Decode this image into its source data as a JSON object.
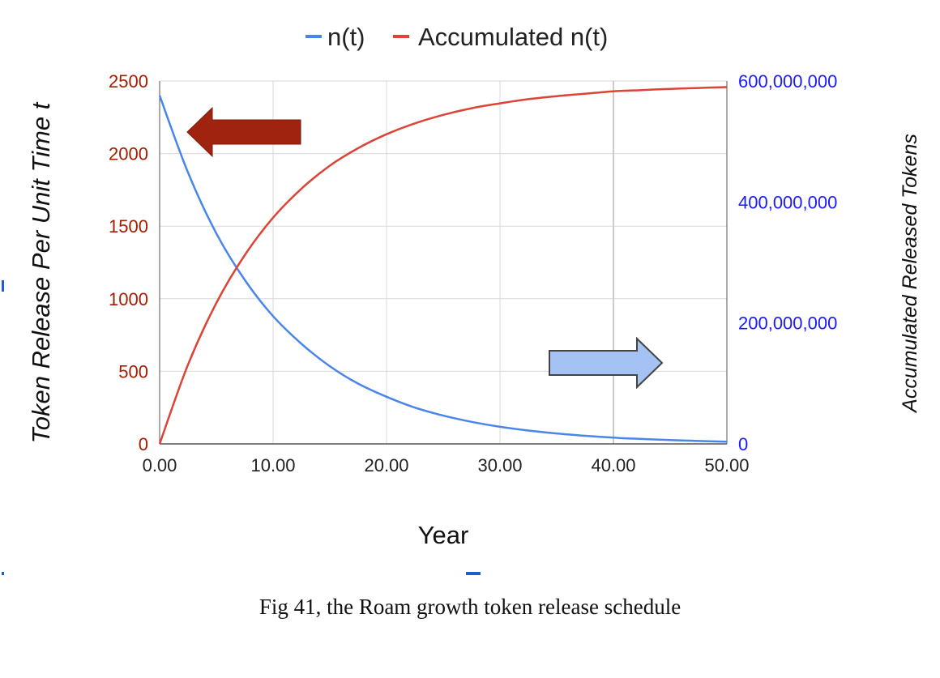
{
  "chart_data": {
    "type": "line",
    "x_label": "Year",
    "y_left_label": "Token Release Per Unit Time t",
    "y_right_label": "Accumulated Released Tokens",
    "x_range": [
      0,
      50
    ],
    "y_left_range": [
      0,
      2500
    ],
    "y_right_range": [
      0,
      600000000
    ],
    "x_ticks": [
      "0.00",
      "10.00",
      "20.00",
      "30.00",
      "40.00",
      "50.00"
    ],
    "y_left_ticks": [
      "0",
      "500",
      "1000",
      "1500",
      "2000",
      "2500"
    ],
    "y_right_ticks": [
      "0",
      "200,000,000",
      "400,000,000",
      "600,000,000"
    ],
    "grid": true,
    "legend_position": "top-center",
    "series": [
      {
        "name": "n(t)",
        "axis": "left",
        "color": "#4a86e8",
        "x": [
          0,
          2.5,
          5,
          7.5,
          10,
          12.5,
          15,
          17.5,
          20,
          22.5,
          25,
          27.5,
          30,
          32.5,
          35,
          37.5,
          40,
          42.5,
          45,
          47.5,
          50
        ],
        "y": [
          2400,
          1870,
          1450,
          1130,
          880,
          690,
          535,
          415,
          325,
          250,
          195,
          152,
          118,
          92,
          72,
          56,
          43,
          34,
          26,
          20,
          15
        ]
      },
      {
        "name": "Accumulated n(t)",
        "axis": "right",
        "color": "#db4437",
        "x": [
          0,
          2.5,
          5,
          7.5,
          10,
          12.5,
          15,
          17.5,
          20,
          22.5,
          25,
          27.5,
          30,
          32.5,
          35,
          37.5,
          40,
          42.5,
          45,
          47.5,
          50
        ],
        "y": [
          0,
          131000000,
          233000000,
          312000000,
          374000000,
          422000000,
          460000000,
          489000000,
          512000000,
          530000000,
          544000000,
          555000000,
          563000000,
          570000000,
          575000000,
          579000000,
          583000000,
          585000000,
          587000000,
          588500000,
          590000000
        ]
      }
    ],
    "colors": {
      "left_axis_text": "#a61c00",
      "right_axis_text": "#1a1aff",
      "left_arrow": "#a0230f",
      "right_arrow": "#a4c2f4",
      "grid": "#d9d9d9"
    }
  },
  "caption": "Fig 41, the Roam growth token release schedule"
}
